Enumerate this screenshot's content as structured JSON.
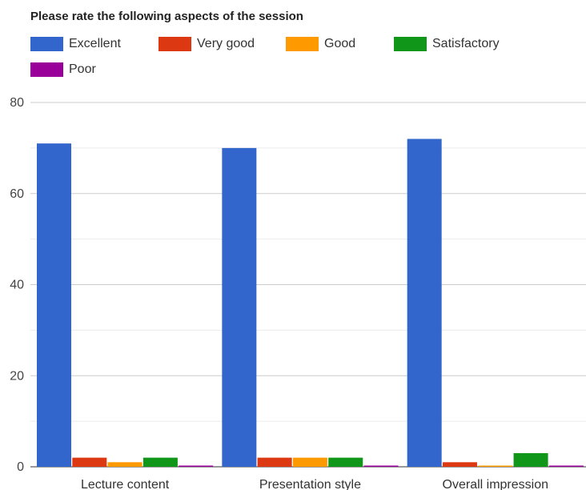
{
  "chart_data": {
    "type": "bar",
    "title": "Please rate the following aspects of the session",
    "xlabel": "",
    "ylabel": "",
    "categories": [
      "Lecture content",
      "Presentation style",
      "Overall impression"
    ],
    "series": [
      {
        "name": "Excellent",
        "color": "#3366cc",
        "values": [
          71,
          70,
          72
        ]
      },
      {
        "name": "Very good",
        "color": "#dc3912",
        "values": [
          2,
          2,
          1
        ]
      },
      {
        "name": "Good",
        "color": "#ff9900",
        "values": [
          1,
          2,
          0
        ]
      },
      {
        "name": "Satisfactory",
        "color": "#109618",
        "values": [
          2,
          2,
          3
        ]
      },
      {
        "name": "Poor",
        "color": "#990099",
        "values": [
          0,
          0,
          0
        ]
      }
    ],
    "ylim": [
      0,
      80
    ],
    "yticks": [
      0,
      20,
      40,
      60,
      80
    ],
    "grid": true,
    "legend_position": "top"
  }
}
